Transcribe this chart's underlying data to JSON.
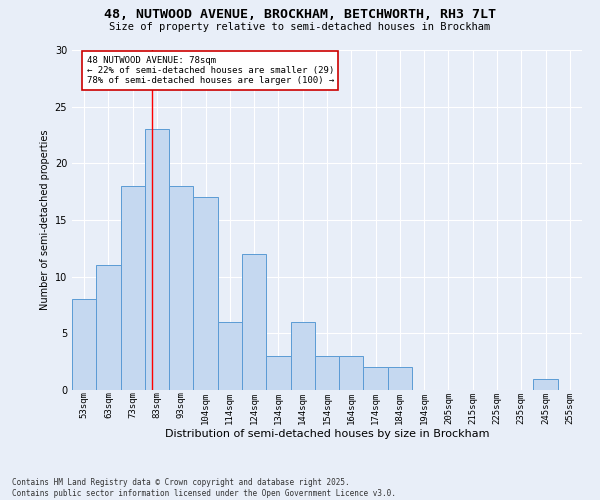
{
  "title_line1": "48, NUTWOOD AVENUE, BROCKHAM, BETCHWORTH, RH3 7LT",
  "title_line2": "Size of property relative to semi-detached houses in Brockham",
  "xlabel": "Distribution of semi-detached houses by size in Brockham",
  "ylabel": "Number of semi-detached properties",
  "footer": "Contains HM Land Registry data © Crown copyright and database right 2025.\nContains public sector information licensed under the Open Government Licence v3.0.",
  "categories": [
    "53sqm",
    "63sqm",
    "73sqm",
    "83sqm",
    "93sqm",
    "104sqm",
    "114sqm",
    "124sqm",
    "134sqm",
    "144sqm",
    "154sqm",
    "164sqm",
    "174sqm",
    "184sqm",
    "194sqm",
    "205sqm",
    "215sqm",
    "225sqm",
    "235sqm",
    "245sqm",
    "255sqm"
  ],
  "values": [
    8,
    11,
    18,
    23,
    18,
    17,
    6,
    12,
    3,
    6,
    3,
    3,
    2,
    2,
    0,
    0,
    0,
    0,
    0,
    1,
    0
  ],
  "bar_color": "#c5d8f0",
  "bar_edge_color": "#5b9bd5",
  "background_color": "#e8eef8",
  "grid_color": "#ffffff",
  "red_line_x": 2.8,
  "annotation_text_line1": "48 NUTWOOD AVENUE: 78sqm",
  "annotation_text_line2": "← 22% of semi-detached houses are smaller (29)",
  "annotation_text_line3": "78% of semi-detached houses are larger (100) →",
  "annotation_box_color": "#ffffff",
  "annotation_box_edge": "#cc0000",
  "ylim": [
    0,
    30
  ],
  "yticks": [
    0,
    5,
    10,
    15,
    20,
    25,
    30
  ]
}
